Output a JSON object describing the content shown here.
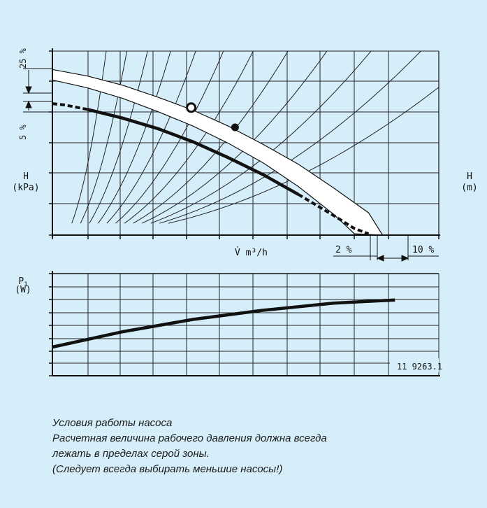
{
  "chart_data": [
    {
      "type": "line",
      "title": "",
      "ylabel": "H\n(kPa)",
      "ylabel_right": "H\n(m)",
      "xlabel": "V̇ m³/h",
      "grid": true,
      "tolerance_labels": {
        "upper": "25 %",
        "lower": "5 %",
        "flow_2": "2 %",
        "flow_10": "10 %"
      },
      "series": [
        {
          "x": [
            0,
            1,
            2,
            3,
            4,
            5,
            6,
            7,
            8,
            9,
            9.4
          ],
          "y": [
            6.3,
            6.05,
            5.7,
            5.25,
            4.75,
            4.15,
            3.45,
            2.7,
            1.8,
            0.85,
            0
          ]
        },
        {
          "x": [
            0,
            1,
            2,
            3,
            4,
            5,
            6,
            7,
            8,
            8.6
          ],
          "y": [
            5.9,
            5.6,
            5.2,
            4.7,
            4.15,
            3.5,
            2.75,
            1.85,
            0.8,
            0.05
          ]
        }
      ],
      "operating_points": [
        {
          "x": 5.2,
          "y": 4.1
        },
        {
          "x": 3.95,
          "y": 4.85
        }
      ]
    },
    {
      "type": "line",
      "ylabel": "P1\n(W)",
      "xlabel": "",
      "drawing_number": "11 9263.1",
      "grid": true,
      "series": [
        {
          "x": [
            0,
            2,
            4,
            6,
            8,
            9.75
          ],
          "y": [
            1.2,
            1.95,
            2.55,
            3.0,
            3.35,
            3.5
          ]
        }
      ]
    }
  ],
  "caption": {
    "line1": "Условия работы насоса",
    "line2": "Расчетная величина рабочего давления должна всегда",
    "line3": "лежать в пределах серой зоны.",
    "line4": "(Следует всегда выбирать меньшие насосы!)"
  }
}
